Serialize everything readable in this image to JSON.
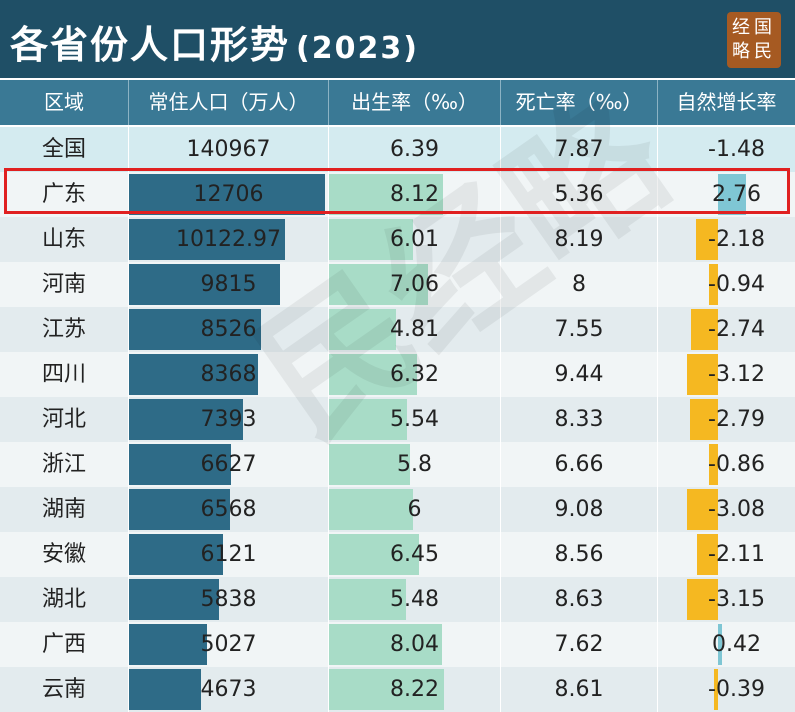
{
  "title": "各省份人口形势",
  "year": "(2023)",
  "logo": [
    "经国",
    "略民"
  ],
  "watermark": "民经略",
  "columns": [
    "区域",
    "常住人口（万人）",
    "出生率（‰）",
    "死亡率（‰）",
    "自然增长率"
  ],
  "highlight_row": "广东",
  "chart_data": {
    "type": "table",
    "title": "各省份人口形势 (2023)",
    "columns": [
      "区域",
      "常住人口（万人）",
      "出生率（‰）",
      "死亡率（‰）",
      "自然增长率"
    ],
    "rows": [
      {
        "region": "全国",
        "population": "140967",
        "birth_rate": "6.39",
        "death_rate": "7.87",
        "natural_growth": "-1.48"
      },
      {
        "region": "广东",
        "population": "12706",
        "birth_rate": "8.12",
        "death_rate": "5.36",
        "natural_growth": "2.76"
      },
      {
        "region": "山东",
        "population": "10122.97",
        "birth_rate": "6.01",
        "death_rate": "8.19",
        "natural_growth": "-2.18"
      },
      {
        "region": "河南",
        "population": "9815",
        "birth_rate": "7.06",
        "death_rate": "8",
        "natural_growth": "-0.94"
      },
      {
        "region": "江苏",
        "population": "8526",
        "birth_rate": "4.81",
        "death_rate": "7.55",
        "natural_growth": "-2.74"
      },
      {
        "region": "四川",
        "population": "8368",
        "birth_rate": "6.32",
        "death_rate": "9.44",
        "natural_growth": "-3.12"
      },
      {
        "region": "河北",
        "population": "7393",
        "birth_rate": "5.54",
        "death_rate": "8.33",
        "natural_growth": "-2.79"
      },
      {
        "region": "浙江",
        "population": "6627",
        "birth_rate": "5.8",
        "death_rate": "6.66",
        "natural_growth": "-0.86"
      },
      {
        "region": "湖南",
        "population": "6568",
        "birth_rate": "6",
        "death_rate": "9.08",
        "natural_growth": "-3.08"
      },
      {
        "region": "安徽",
        "population": "6121",
        "birth_rate": "6.45",
        "death_rate": "8.56",
        "natural_growth": "-2.11"
      },
      {
        "region": "湖北",
        "population": "5838",
        "birth_rate": "5.48",
        "death_rate": "8.63",
        "natural_growth": "-3.15"
      },
      {
        "region": "广西",
        "population": "5027",
        "birth_rate": "8.04",
        "death_rate": "7.62",
        "natural_growth": "0.42"
      },
      {
        "region": "云南",
        "population": "4673",
        "birth_rate": "8.22",
        "death_rate": "8.61",
        "natural_growth": "-0.39"
      }
    ]
  },
  "colors": {
    "title_bg": "#1f4f66",
    "header_bg": "#3a7995",
    "population_bar": "#2e6b87",
    "birth_bar": "#a8dcc7",
    "growth_positive": "#7fc6d4",
    "growth_negative": "#f5b821",
    "highlight": "#e02020",
    "logo_bg": "#a65a22"
  }
}
